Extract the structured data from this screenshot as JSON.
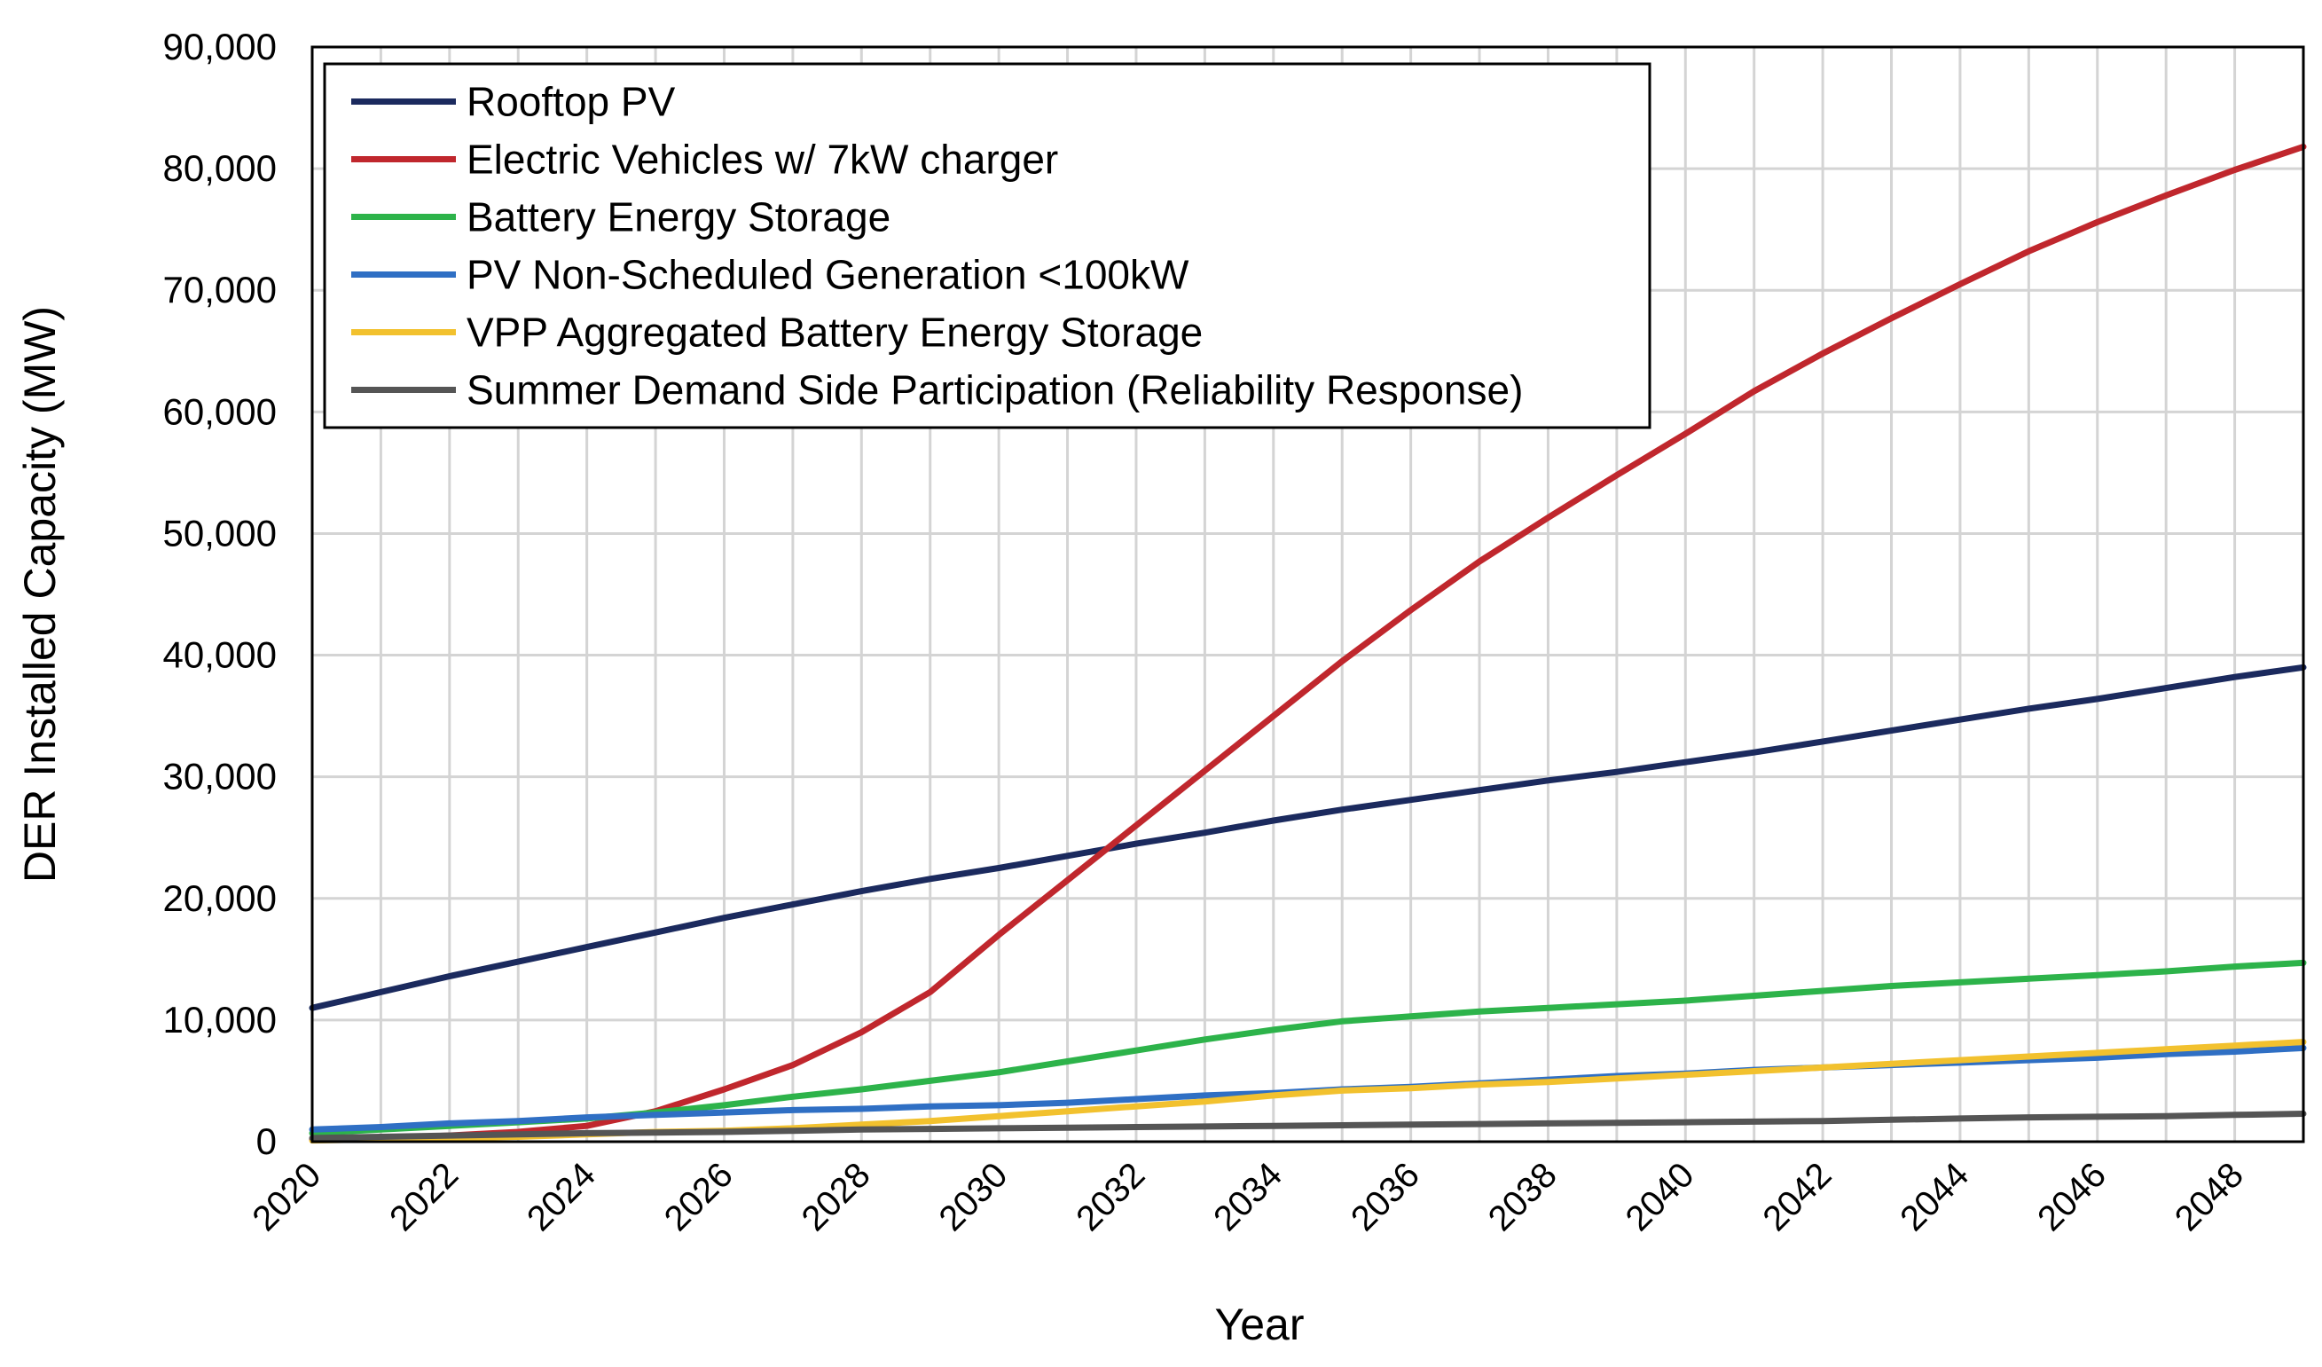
{
  "chart_data": {
    "type": "line",
    "title": "",
    "xlabel": "Year",
    "ylabel": "DER Installed Capacity (MW)",
    "xlim": [
      2020,
      2049
    ],
    "ylim": [
      0,
      90000
    ],
    "y_ticks": [
      0,
      10000,
      20000,
      30000,
      40000,
      50000,
      60000,
      70000,
      80000,
      90000
    ],
    "y_tick_labels": [
      "0",
      "10,000",
      "20,000",
      "30,000",
      "40,000",
      "50,000",
      "60,000",
      "70,000",
      "80,000",
      "90,000"
    ],
    "x_ticks": [
      2020,
      2022,
      2024,
      2026,
      2028,
      2030,
      2032,
      2034,
      2036,
      2038,
      2040,
      2042,
      2044,
      2046,
      2048
    ],
    "x_tick_labels": [
      "2020",
      "2022",
      "2024",
      "2026",
      "2028",
      "2030",
      "2032",
      "2034",
      "2036",
      "2038",
      "2040",
      "2042",
      "2044",
      "2046",
      "2048"
    ],
    "grid": true,
    "legend_position": "top-left",
    "x": [
      2020,
      2021,
      2022,
      2023,
      2024,
      2025,
      2026,
      2027,
      2028,
      2029,
      2030,
      2031,
      2032,
      2033,
      2034,
      2035,
      2036,
      2037,
      2038,
      2039,
      2040,
      2041,
      2042,
      2043,
      2044,
      2045,
      2046,
      2047,
      2048,
      2049
    ],
    "series": [
      {
        "name": "Rooftop PV",
        "color": "#1b2a5e",
        "values": [
          11000,
          12300,
          13600,
          14800,
          16000,
          17200,
          18400,
          19500,
          20600,
          21600,
          22500,
          23500,
          24500,
          25400,
          26400,
          27300,
          28100,
          28900,
          29700,
          30400,
          31200,
          32000,
          32900,
          33800,
          34700,
          35600,
          36400,
          37300,
          38200,
          39000
        ]
      },
      {
        "name": "Electric Vehicles w/ 7kW charger",
        "color": "#c0272d",
        "values": [
          200,
          300,
          500,
          800,
          1300,
          2500,
          4300,
          6300,
          9000,
          12300,
          17000,
          21500,
          26000,
          30500,
          35000,
          39500,
          43700,
          47700,
          51300,
          54800,
          58200,
          61700,
          64800,
          67700,
          70500,
          73200,
          75600,
          77800,
          79900,
          81800
        ]
      },
      {
        "name": "Battery Energy Storage",
        "color": "#2db34a",
        "values": [
          700,
          1000,
          1300,
          1600,
          1900,
          2400,
          3000,
          3700,
          4300,
          5000,
          5700,
          6600,
          7500,
          8400,
          9200,
          9900,
          10300,
          10700,
          11000,
          11300,
          11600,
          12000,
          12400,
          12800,
          13100,
          13400,
          13700,
          14000,
          14400,
          14700
        ]
      },
      {
        "name": "PV Non-Scheduled Generation <100kW",
        "color": "#2f6fc4",
        "values": [
          1000,
          1200,
          1500,
          1700,
          2000,
          2200,
          2400,
          2600,
          2700,
          2900,
          3000,
          3200,
          3500,
          3800,
          4000,
          4300,
          4500,
          4800,
          5100,
          5400,
          5600,
          5900,
          6100,
          6300,
          6500,
          6700,
          6900,
          7200,
          7400,
          7700
        ]
      },
      {
        "name": "VPP Aggregated Battery Energy Storage",
        "color": "#f2c12e",
        "values": [
          100,
          200,
          300,
          400,
          600,
          800,
          900,
          1100,
          1400,
          1700,
          2100,
          2500,
          2900,
          3300,
          3800,
          4200,
          4400,
          4700,
          4900,
          5200,
          5500,
          5800,
          6100,
          6400,
          6700,
          7000,
          7300,
          7600,
          7900,
          8200
        ]
      },
      {
        "name": "Summer Demand Side Participation (Reliability Response)",
        "color": "#555555",
        "values": [
          300,
          400,
          500,
          600,
          700,
          750,
          800,
          900,
          1000,
          1050,
          1100,
          1150,
          1200,
          1250,
          1300,
          1350,
          1400,
          1450,
          1500,
          1550,
          1600,
          1650,
          1700,
          1800,
          1900,
          2000,
          2050,
          2100,
          2200,
          2300
        ]
      }
    ]
  }
}
